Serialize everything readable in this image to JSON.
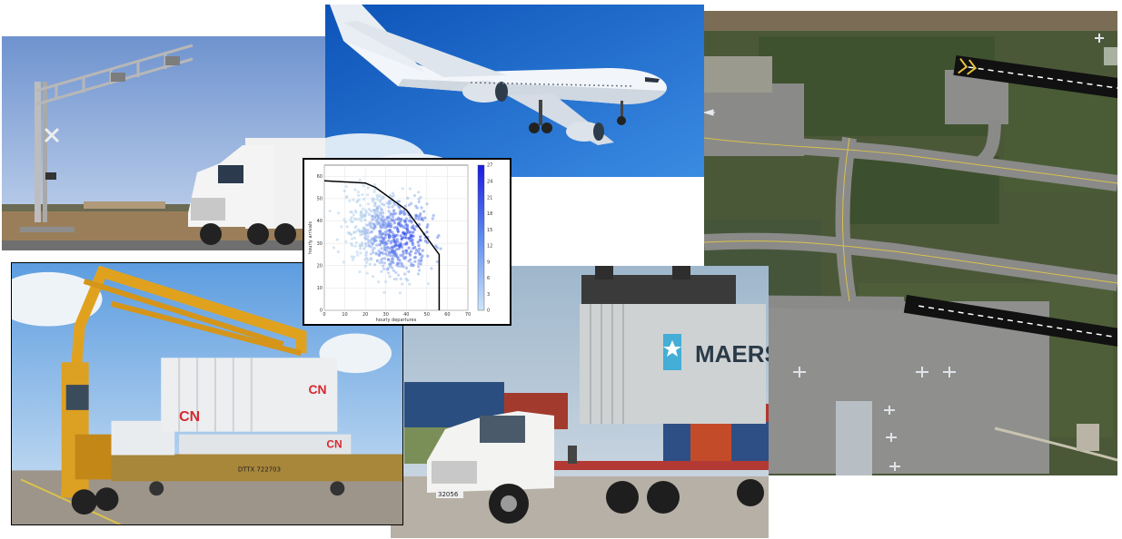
{
  "container_truck": {
    "container_brand": "MAERSK",
    "truck_number": "32056"
  },
  "straddle": {
    "container_logo": "CN",
    "railcar_number": "DTTX 722703"
  },
  "colors": {
    "sky_blue": "#7fb3e6",
    "airplane_sky": "#1f6fd1",
    "crane_yellow": "#e0a21e",
    "cn_red": "#d7282f",
    "grass": "#4d5a3c",
    "taxiway_gray": "#8a8a88"
  },
  "chart_data": {
    "type": "scatter",
    "title": "",
    "xlabel": "hourly departures",
    "ylabel": "hourly arrivals",
    "xlim": [
      0,
      70
    ],
    "ylim": [
      0,
      65
    ],
    "x_ticks": [
      "0",
      "10",
      "20",
      "30",
      "40",
      "50",
      "60",
      "70"
    ],
    "y_ticks": [
      "0",
      "10",
      "20",
      "30",
      "40",
      "50",
      "60"
    ],
    "colorbar_ticks": [
      "0",
      "3",
      "6",
      "9",
      "12",
      "15",
      "18",
      "21",
      "24",
      "27"
    ],
    "colorbar_range": [
      0,
      27
    ],
    "grid": true,
    "density_center": [
      42,
      33
    ],
    "capacity_envelope": {
      "x": [
        0,
        20,
        25,
        40,
        48,
        56,
        56
      ],
      "y": [
        58,
        57,
        55,
        45,
        35,
        25,
        0
      ]
    }
  }
}
